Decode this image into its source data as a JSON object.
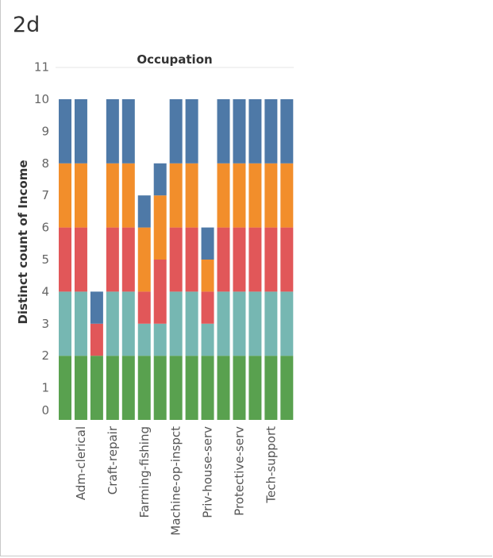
{
  "sheet": {
    "title": "2d"
  },
  "chart_data": {
    "type": "bar",
    "stacked": true,
    "title": "Occupation",
    "ylabel": "Distinct count of Income",
    "ylim": [
      0,
      11
    ],
    "yticks": [
      0,
      1,
      2,
      3,
      4,
      5,
      6,
      7,
      8,
      9,
      10,
      11
    ],
    "grid": false,
    "categories": [
      "",
      "Adm-clerical",
      "",
      "Craft-repair",
      "",
      "Farming-fishing",
      "",
      "Machine-op-inspct",
      "",
      "Priv-house-serv",
      "",
      "Protective-serv",
      "",
      "Tech-support",
      ""
    ],
    "colors": [
      "#59a14f",
      "#76b7b2",
      "#e15759",
      "#f28e2b",
      "#4e79a7"
    ],
    "series": [
      {
        "values": [
          2,
          2,
          2,
          2,
          2,
          2,
          2,
          2,
          2,
          2,
          2,
          2,
          2,
          2,
          2
        ]
      },
      {
        "values": [
          2,
          2,
          0,
          2,
          2,
          1,
          1,
          2,
          2,
          1,
          2,
          2,
          2,
          2,
          2
        ]
      },
      {
        "values": [
          2,
          2,
          1,
          2,
          2,
          1,
          2,
          2,
          2,
          1,
          2,
          2,
          2,
          2,
          2
        ]
      },
      {
        "values": [
          2,
          2,
          0,
          2,
          2,
          2,
          2,
          2,
          2,
          1,
          2,
          2,
          2,
          2,
          2
        ]
      },
      {
        "values": [
          2,
          2,
          1,
          2,
          2,
          1,
          1,
          2,
          2,
          1,
          2,
          2,
          2,
          2,
          2
        ]
      }
    ]
  }
}
